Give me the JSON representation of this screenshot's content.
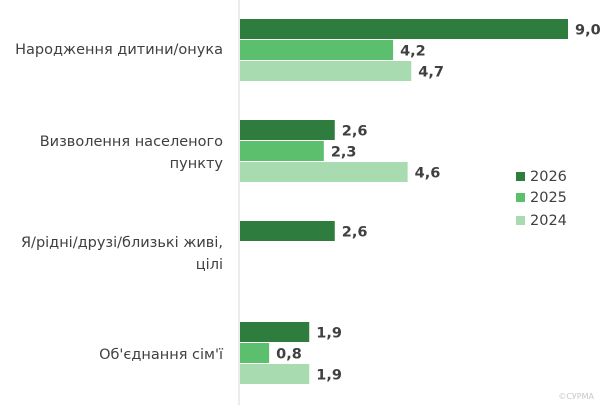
{
  "chart_data": {
    "type": "bar",
    "orientation": "horizontal",
    "categories": [
      [
        "Народження дитини/онука"
      ],
      [
        "Визволення населеного",
        "пункту"
      ],
      [
        "Я/рідні/друзі/близькі живі,",
        "цілі"
      ],
      [
        "Об'єднання сім'ї"
      ]
    ],
    "series": [
      {
        "name": "2026",
        "color": "#2e7d3e",
        "values": [
          9.0,
          2.6,
          2.6,
          1.9
        ],
        "labels": [
          "9,0",
          "2,6",
          "2,6",
          "1,9"
        ]
      },
      {
        "name": "2025",
        "color": "#5cbf6e",
        "values": [
          4.2,
          2.3,
          null,
          0.8
        ],
        "labels": [
          "4,2",
          "2,3",
          "",
          "0,8"
        ]
      },
      {
        "name": "2024",
        "color": "#a8dcb0",
        "values": [
          4.7,
          4.6,
          null,
          1.9
        ],
        "labels": [
          "4,7",
          "4,6",
          "",
          "1,9"
        ]
      }
    ],
    "xlim": [
      0,
      9.0
    ],
    "legend_position": "right",
    "grid": false,
    "watermark": "©СУРМА"
  }
}
